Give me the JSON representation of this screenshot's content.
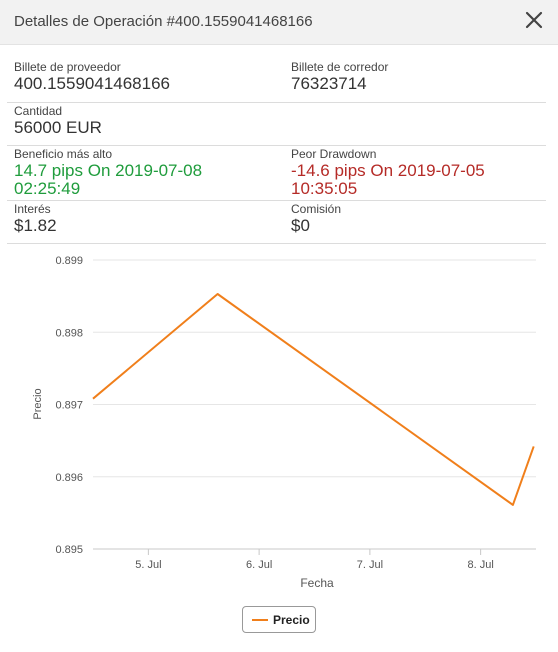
{
  "modal": {
    "title": "Detalles de Operación #400.1559041468166"
  },
  "details": {
    "provider_ticket": {
      "label": "Billete de proveedor",
      "value": "400.1559041468166"
    },
    "broker_ticket": {
      "label": "Billete de corredor",
      "value": "76323714"
    },
    "quantity": {
      "label": "Cantidad",
      "value": "56000 EUR"
    },
    "max_profit": {
      "label": "Beneficio más alto",
      "line1": "14.7 pips On 2019-07-08",
      "line2": "02:25:49"
    },
    "worst_drawdown": {
      "label": "Peor Drawdown",
      "line1": "-14.6 pips On 2019-07-05",
      "line2": "10:35:05"
    },
    "interest": {
      "label": "Interés",
      "value": "$1.82"
    },
    "commission": {
      "label": "Comisión",
      "value": "$0"
    }
  },
  "colors": {
    "profit": "#1f9c3c",
    "drawdown": "#b52b27",
    "series": "#f07f1b"
  },
  "chart_data": {
    "type": "line",
    "xlabel": "Fecha",
    "ylabel": "Precio",
    "ylim": [
      0.895,
      0.899
    ],
    "xlim": [
      "2019-07-04T12:00:00",
      "2019-07-08T12:00:00"
    ],
    "yticks": [
      "0.899",
      "0.898",
      "0.897",
      "0.896",
      "0.895"
    ],
    "xticks": [
      {
        "label": "5. Jul",
        "date": "2019-07-05T00:00:00"
      },
      {
        "label": "6. Jul",
        "date": "2019-07-06T00:00:00"
      },
      {
        "label": "7. Jul",
        "date": "2019-07-07T00:00:00"
      },
      {
        "label": "8. Jul",
        "date": "2019-07-08T00:00:00"
      }
    ],
    "grid": true,
    "legend_position": "bottom-center",
    "series": [
      {
        "name": "Precio",
        "points": [
          {
            "x": "2019-07-04T12:00:00",
            "y": 0.89708
          },
          {
            "x": "2019-07-05T15:00:00",
            "y": 0.89853
          },
          {
            "x": "2019-07-08T07:00:00",
            "y": 0.89561
          },
          {
            "x": "2019-07-08T11:30:00",
            "y": 0.89642
          }
        ]
      }
    ]
  }
}
